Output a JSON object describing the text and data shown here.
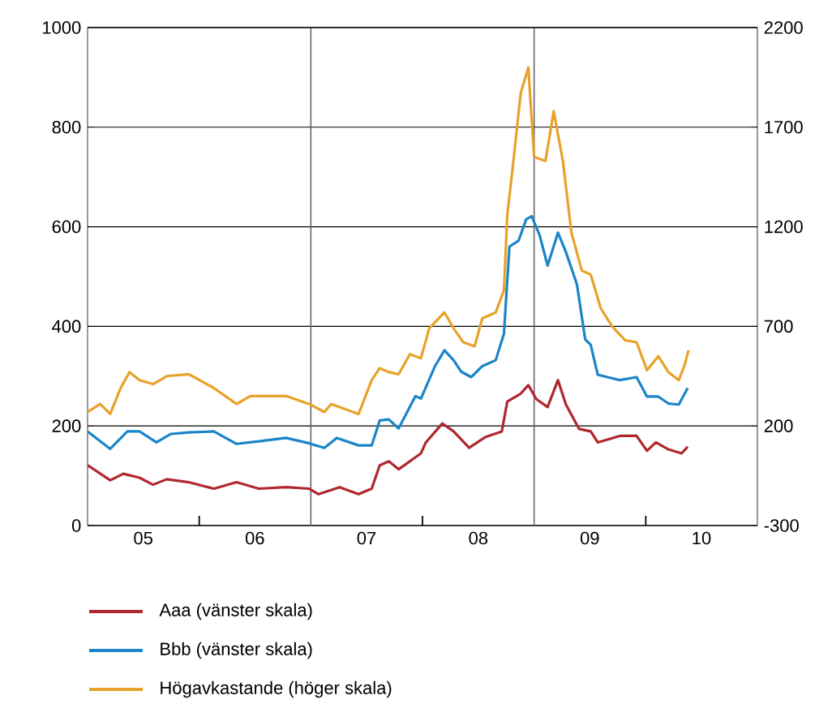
{
  "chart_data": {
    "type": "line",
    "xlim": [
      "2005-01-01",
      "2011-01-01"
    ],
    "xticks": [
      {
        "value": "2005-07-02",
        "label": "05"
      },
      {
        "value": "2006-07-02",
        "label": "06"
      },
      {
        "value": "2007-07-02",
        "label": "07"
      },
      {
        "value": "2008-07-02",
        "label": "08"
      },
      {
        "value": "2009-07-02",
        "label": "09"
      },
      {
        "value": "2010-07-02",
        "label": "10"
      },
      {
        "value": "2006-01-01",
        "label": null
      },
      {
        "value": "2008-01-01",
        "label": null
      },
      {
        "value": "2010-01-01",
        "label": null
      }
    ],
    "ylim": [
      0,
      1000
    ],
    "yticks": [
      0,
      200,
      400,
      600,
      800,
      1000
    ],
    "y2lim": [
      -300,
      2200
    ],
    "y2ticks": [
      -300,
      200,
      700,
      1200,
      1700,
      2200
    ],
    "grid": "y",
    "legend": "bottom",
    "ref_lines": [
      {
        "axis": "x",
        "value": "2007-01-01"
      },
      {
        "axis": "x",
        "value": "2009-01-01"
      }
    ],
    "series": [
      {
        "name": "Aaa (vänster skala)",
        "color": "#b0282e",
        "x": [
          "2005-01-01",
          "2005-03-16",
          "2005-04-28",
          "2005-06-20",
          "2005-08-03",
          "2005-09-17",
          "2005-11-28",
          "2006-02-18",
          "2006-05-03",
          "2006-07-15",
          "2006-10-12",
          "2006-12-27",
          "2007-01-26",
          "2007-04-05",
          "2007-06-06",
          "2007-07-19",
          "2007-08-14",
          "2007-09-13",
          "2007-10-15",
          "2007-12-27",
          "2008-01-12",
          "2008-03-06",
          "2008-04-12",
          "2008-06-02",
          "2008-07-26",
          "2008-09-17",
          "2008-10-05",
          "2008-11-18",
          "2008-12-13",
          "2009-01-08",
          "2009-02-14",
          "2009-03-20",
          "2009-04-15",
          "2009-05-28",
          "2009-07-05",
          "2009-07-28",
          "2009-10-08",
          "2009-12-02",
          "2010-01-05",
          "2010-02-03",
          "2010-03-16",
          "2010-04-28",
          "2010-05-18"
        ],
        "values": [
          121,
          91,
          104,
          96,
          82,
          93,
          87,
          74,
          87,
          74,
          77,
          74,
          63,
          77,
          63,
          74,
          121,
          129,
          113,
          145,
          167,
          205,
          189,
          156,
          178,
          189,
          249,
          265,
          282,
          254,
          238,
          292,
          243,
          194,
          189,
          167,
          180,
          180,
          150,
          167,
          153,
          145,
          158
        ]
      },
      {
        "name": "Bbb (vänster skala)",
        "color": "#1a85c8",
        "x": [
          "2005-01-01",
          "2005-03-16",
          "2005-05-11",
          "2005-06-20",
          "2005-08-14",
          "2005-10-01",
          "2005-11-28",
          "2006-02-18",
          "2006-05-03",
          "2006-07-15",
          "2006-10-12",
          "2006-12-27",
          "2007-02-14",
          "2007-03-27",
          "2007-06-06",
          "2007-07-19",
          "2007-08-14",
          "2007-09-13",
          "2007-10-15",
          "2007-12-09",
          "2007-12-27",
          "2008-02-11",
          "2008-03-13",
          "2008-04-12",
          "2008-05-07",
          "2008-06-09",
          "2008-07-15",
          "2008-08-28",
          "2008-09-24",
          "2008-10-12",
          "2008-11-11",
          "2008-12-06",
          "2008-12-24",
          "2009-01-19",
          "2009-02-14",
          "2009-03-20",
          "2009-04-15",
          "2009-05-21",
          "2009-06-17",
          "2009-07-05",
          "2009-07-28",
          "2009-10-08",
          "2009-12-02",
          "2010-01-05",
          "2010-02-11",
          "2010-03-16",
          "2010-04-19",
          "2010-05-18"
        ],
        "values": [
          189,
          154,
          189,
          189,
          167,
          184,
          187,
          189,
          164,
          169,
          176,
          165,
          156,
          176,
          161,
          161,
          211,
          213,
          195,
          260,
          255,
          320,
          352,
          332,
          309,
          298,
          320,
          332,
          385,
          560,
          572,
          615,
          621,
          583,
          522,
          588,
          549,
          484,
          374,
          363,
          303,
          292,
          298,
          259,
          259,
          245,
          243,
          276
        ]
      },
      {
        "name": "Högavkastande (höger skala)",
        "color": "#e8a22a",
        "axis": "y2",
        "x": [
          "2005-01-01",
          "2005-02-11",
          "2005-03-16",
          "2005-04-19",
          "2005-05-18",
          "2005-06-20",
          "2005-08-03",
          "2005-09-17",
          "2005-11-28",
          "2006-02-18",
          "2006-05-03",
          "2006-06-17",
          "2006-10-12",
          "2006-12-27",
          "2007-02-14",
          "2007-03-09",
          "2007-06-06",
          "2007-07-19",
          "2007-08-14",
          "2007-09-13",
          "2007-10-15",
          "2007-11-21",
          "2007-12-27",
          "2008-01-23",
          "2008-03-13",
          "2008-04-12",
          "2008-05-14",
          "2008-06-20",
          "2008-07-15",
          "2008-08-28",
          "2008-09-24",
          "2008-10-05",
          "2008-10-23",
          "2008-11-18",
          "2008-12-13",
          "2009-01-01",
          "2009-02-07",
          "2009-03-06",
          "2009-04-05",
          "2009-05-03",
          "2009-06-06",
          "2009-07-05",
          "2009-08-07",
          "2009-09-13",
          "2009-10-26",
          "2009-12-02",
          "2010-01-05",
          "2010-02-11",
          "2010-03-16",
          "2010-04-19",
          "2010-05-07",
          "2010-05-21"
        ],
        "values": [
          270,
          310,
          260,
          390,
          470,
          430,
          410,
          450,
          460,
          390,
          310,
          350,
          350,
          310,
          270,
          310,
          260,
          430,
          490,
          470,
          460,
          560,
          540,
          690,
          770,
          690,
          620,
          600,
          740,
          770,
          880,
          1260,
          1500,
          1870,
          2000,
          1550,
          1530,
          1780,
          1530,
          1170,
          980,
          960,
          790,
          700,
          630,
          620,
          480,
          550,
          470,
          430,
          500,
          580
        ]
      }
    ]
  }
}
